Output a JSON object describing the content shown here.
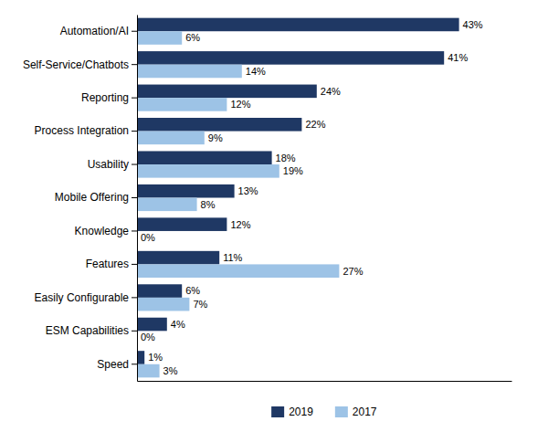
{
  "chart_data": {
    "type": "bar",
    "orientation": "horizontal",
    "categories": [
      "Automation/AI",
      "Self-Service/Chatbots",
      "Reporting",
      "Process Integration",
      "Usability",
      "Mobile Offering",
      "Knowledge",
      "Features",
      "Easily Configurable",
      "ESM Capabilities",
      "Speed"
    ],
    "series": [
      {
        "name": "2019",
        "color": "#1F3864",
        "values": [
          43,
          41,
          24,
          22,
          18,
          13,
          12,
          11,
          6,
          4,
          1
        ],
        "value_labels": [
          "43%",
          "41%",
          "24%",
          "22%",
          "18%",
          "13%",
          "12%",
          "11%",
          "6%",
          "4%",
          "1%"
        ]
      },
      {
        "name": "2017",
        "color": "#9DC3E6",
        "values": [
          6,
          14,
          12,
          9,
          19,
          8,
          0,
          27,
          7,
          0,
          3
        ],
        "value_labels": [
          "6%",
          "14%",
          "12%",
          "9%",
          "19%",
          "8%",
          "0%",
          "27%",
          "7%",
          "0%",
          "3%"
        ]
      }
    ],
    "xlim": [
      0,
      50
    ],
    "data_labels": true,
    "tick_labels": "y",
    "legend": "bottom",
    "grid": false
  }
}
